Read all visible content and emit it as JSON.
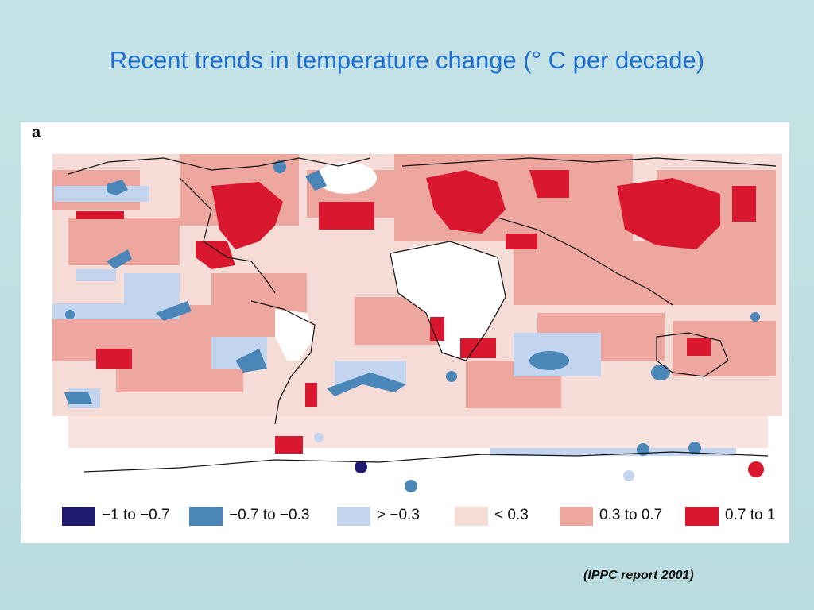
{
  "slide": {
    "title": "Recent trends in temperature change (° C per decade)",
    "citation": "(IPPC report 2001)"
  },
  "figure": {
    "panel_label": "a",
    "legend": [
      {
        "label": "−1 to −0.7",
        "color": "#1f1a6e"
      },
      {
        "label": "−0.7 to −0.3",
        "color": "#4a86b8"
      },
      {
        "label": "> −0.3",
        "color": "#c2d4ee"
      },
      {
        "label": "< 0.3",
        "color": "#f6dcd7"
      },
      {
        "label": "0.3 to 0.7",
        "color": "#eea79f"
      },
      {
        "label": "0.7 to 1",
        "color": "#d9182f"
      }
    ]
  }
}
